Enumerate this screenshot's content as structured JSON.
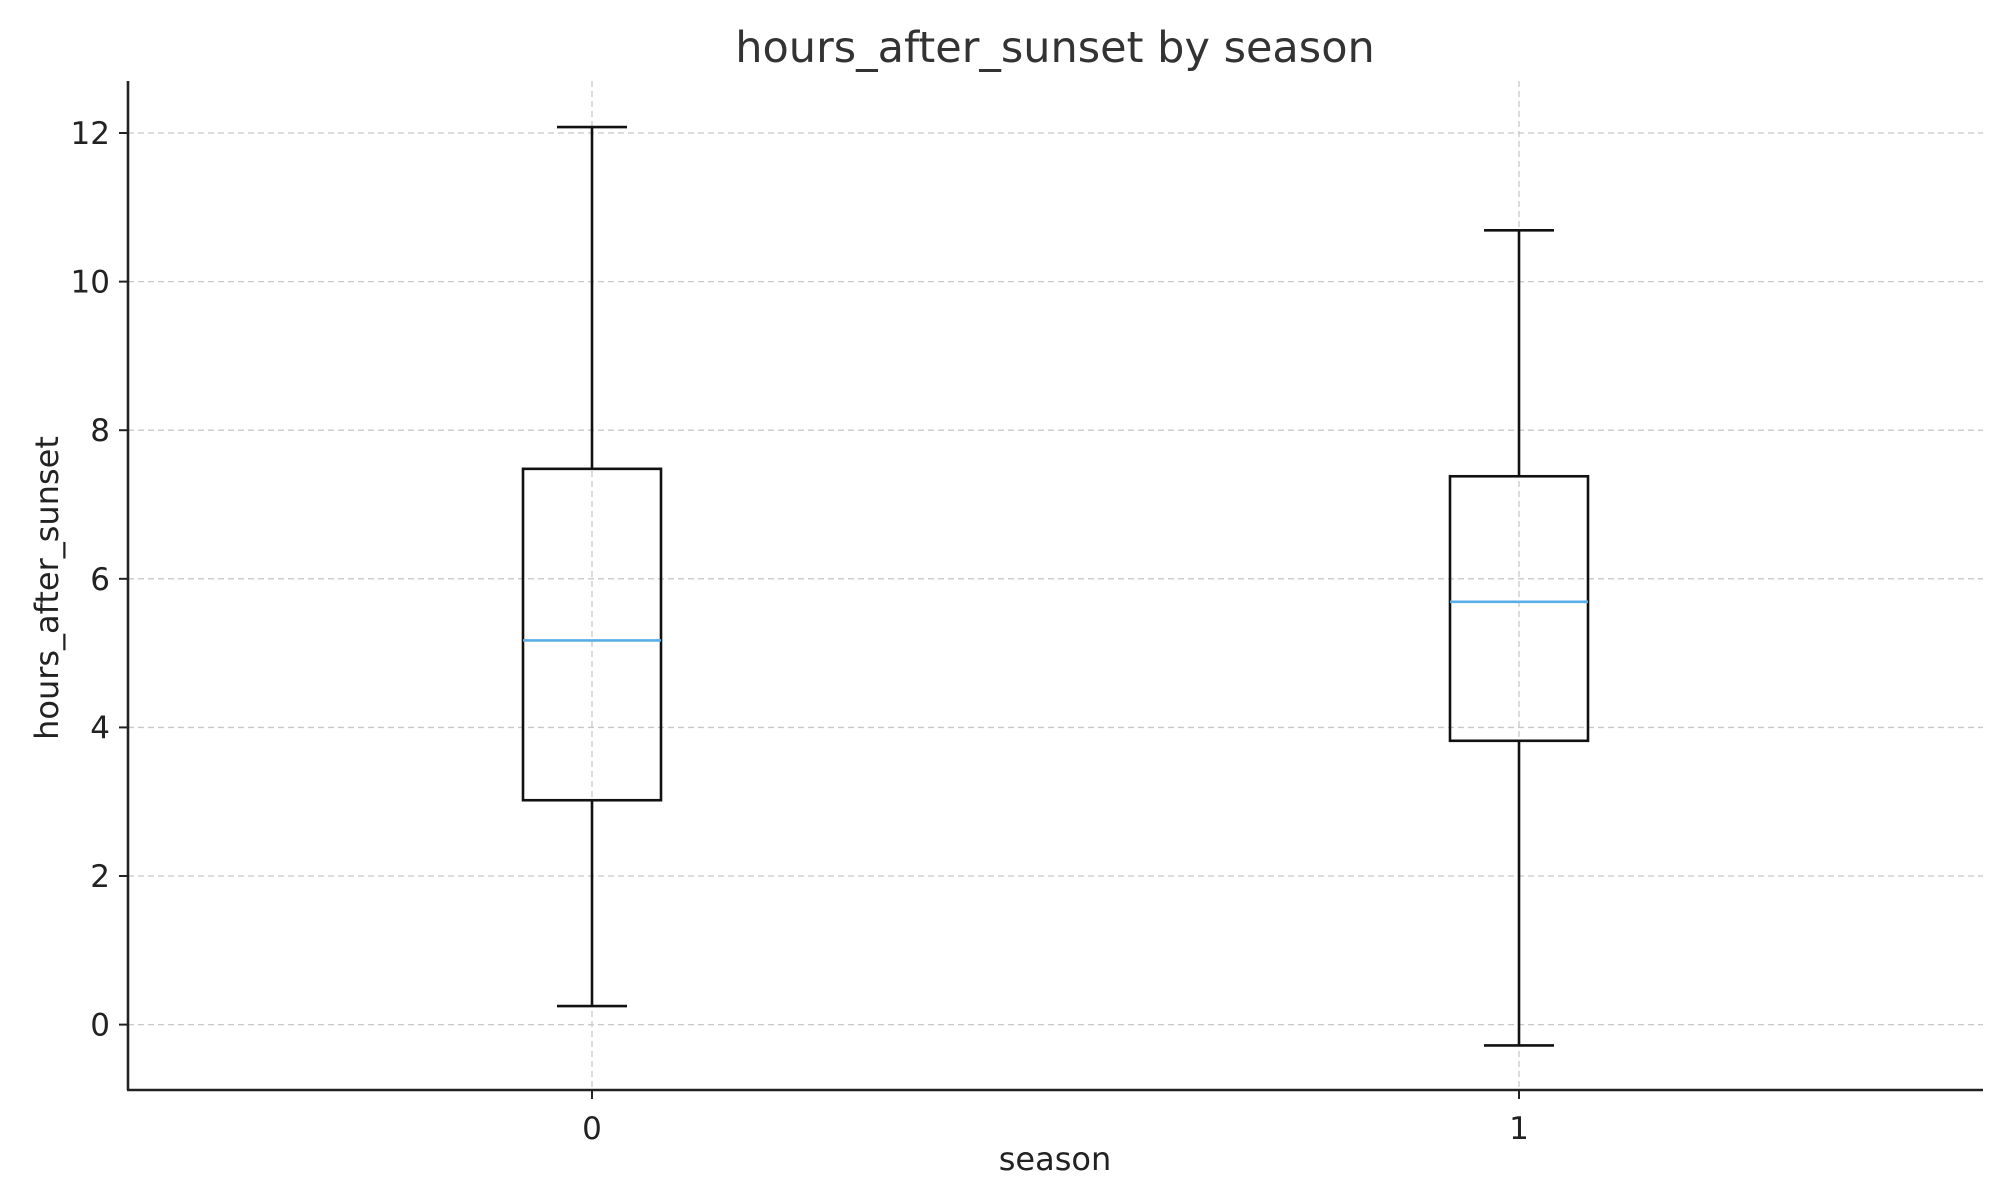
{
  "chart_data": {
    "type": "box",
    "title": "hours_after_sunset by season",
    "xlabel": "season",
    "ylabel": "hours_after_sunset",
    "categories": [
      "0",
      "1"
    ],
    "boxes": [
      {
        "category": "0",
        "whisker_low": 0.25,
        "q1": 3.02,
        "median": 5.17,
        "q3": 7.48,
        "whisker_high": 12.08
      },
      {
        "category": "1",
        "whisker_low": -0.28,
        "q1": 3.82,
        "median": 5.69,
        "q3": 7.38,
        "whisker_high": 10.69
      }
    ],
    "ylim": [
      -0.88,
      12.7
    ],
    "yticks": [
      0,
      2,
      4,
      6,
      8,
      10,
      12
    ],
    "grid": true,
    "colors": {
      "median": "#5aaee8",
      "box": "#111111",
      "grid": "#c8c8c8"
    }
  }
}
